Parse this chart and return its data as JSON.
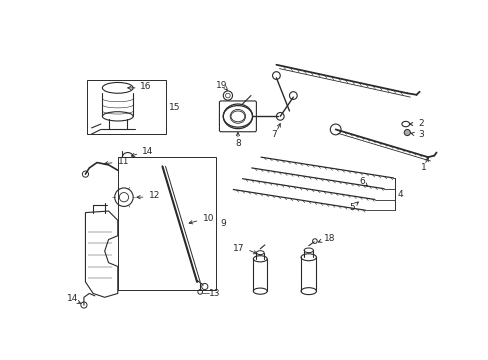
{
  "bg_color": "#ffffff",
  "line_color": "#2a2a2a",
  "label_color": "#000000",
  "fs": 6.5,
  "fig_width": 4.89,
  "fig_height": 3.6,
  "dpi": 100
}
